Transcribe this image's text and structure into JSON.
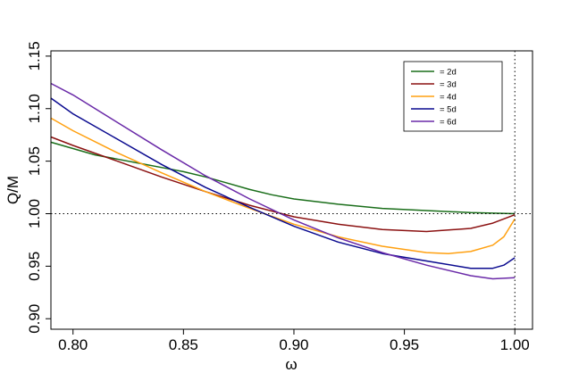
{
  "chart_data": {
    "type": "line",
    "title": "",
    "xlabel": "ω",
    "ylabel": "Q/M",
    "xlim": [
      0.79,
      1.008
    ],
    "ylim": [
      0.89,
      1.155
    ],
    "x_ticks": [
      0.8,
      0.85,
      0.9,
      0.95,
      1.0
    ],
    "x_tick_labels": [
      "0.80",
      "0.85",
      "0.90",
      "0.95",
      "1.00"
    ],
    "y_ticks": [
      0.9,
      0.95,
      1.0,
      1.05,
      1.1,
      1.15
    ],
    "y_tick_labels": [
      "0.90",
      "0.95",
      "1.00",
      "1.05",
      "1.10",
      "1.15"
    ],
    "grid": false,
    "legend_position": "top-right",
    "reference_lines": [
      {
        "orientation": "horizontal",
        "value": 1.0,
        "style": "dotted"
      },
      {
        "orientation": "vertical",
        "value": 1.0,
        "style": "dotted"
      }
    ],
    "series": [
      {
        "name": "= 2d",
        "color": "#1a6e1a",
        "points": [
          [
            0.79,
            1.068
          ],
          [
            0.8,
            1.062
          ],
          [
            0.81,
            1.056
          ],
          [
            0.82,
            1.052
          ],
          [
            0.83,
            1.048
          ],
          [
            0.84,
            1.044
          ],
          [
            0.85,
            1.04
          ],
          [
            0.86,
            1.035
          ],
          [
            0.87,
            1.029
          ],
          [
            0.88,
            1.023
          ],
          [
            0.89,
            1.018
          ],
          [
            0.9,
            1.014
          ],
          [
            0.92,
            1.009
          ],
          [
            0.94,
            1.005
          ],
          [
            0.96,
            1.003
          ],
          [
            0.98,
            1.001
          ],
          [
            1.0,
            1.0
          ]
        ]
      },
      {
        "name": "= 3d",
        "color": "#8b1111",
        "points": [
          [
            0.79,
            1.073
          ],
          [
            0.8,
            1.065
          ],
          [
            0.82,
            1.05
          ],
          [
            0.84,
            1.035
          ],
          [
            0.86,
            1.021
          ],
          [
            0.88,
            1.008
          ],
          [
            0.9,
            0.997
          ],
          [
            0.92,
            0.99
          ],
          [
            0.94,
            0.985
          ],
          [
            0.96,
            0.983
          ],
          [
            0.98,
            0.986
          ],
          [
            0.99,
            0.991
          ],
          [
            1.0,
            0.999
          ]
        ]
      },
      {
        "name": "= 4d",
        "color": "#ffa010",
        "points": [
          [
            0.79,
            1.091
          ],
          [
            0.8,
            1.079
          ],
          [
            0.82,
            1.058
          ],
          [
            0.84,
            1.039
          ],
          [
            0.86,
            1.021
          ],
          [
            0.88,
            1.005
          ],
          [
            0.9,
            0.99
          ],
          [
            0.92,
            0.978
          ],
          [
            0.94,
            0.969
          ],
          [
            0.96,
            0.963
          ],
          [
            0.97,
            0.962
          ],
          [
            0.98,
            0.964
          ],
          [
            0.99,
            0.97
          ],
          [
            0.995,
            0.978
          ],
          [
            1.0,
            0.995
          ]
        ]
      },
      {
        "name": "= 5d",
        "color": "#0a0a8f",
        "points": [
          [
            0.79,
            1.11
          ],
          [
            0.8,
            1.095
          ],
          [
            0.82,
            1.071
          ],
          [
            0.84,
            1.047
          ],
          [
            0.86,
            1.025
          ],
          [
            0.88,
            1.006
          ],
          [
            0.9,
            0.988
          ],
          [
            0.92,
            0.973
          ],
          [
            0.94,
            0.962
          ],
          [
            0.96,
            0.955
          ],
          [
            0.98,
            0.948
          ],
          [
            0.99,
            0.948
          ],
          [
            0.995,
            0.951
          ],
          [
            1.0,
            0.958
          ]
        ]
      },
      {
        "name": "= 6d",
        "color": "#6a2aa8",
        "points": [
          [
            0.79,
            1.124
          ],
          [
            0.8,
            1.113
          ],
          [
            0.82,
            1.087
          ],
          [
            0.84,
            1.061
          ],
          [
            0.86,
            1.036
          ],
          [
            0.88,
            1.014
          ],
          [
            0.9,
            0.994
          ],
          [
            0.92,
            0.977
          ],
          [
            0.94,
            0.963
          ],
          [
            0.96,
            0.951
          ],
          [
            0.98,
            0.941
          ],
          [
            0.99,
            0.938
          ],
          [
            1.0,
            0.939
          ]
        ]
      }
    ]
  }
}
